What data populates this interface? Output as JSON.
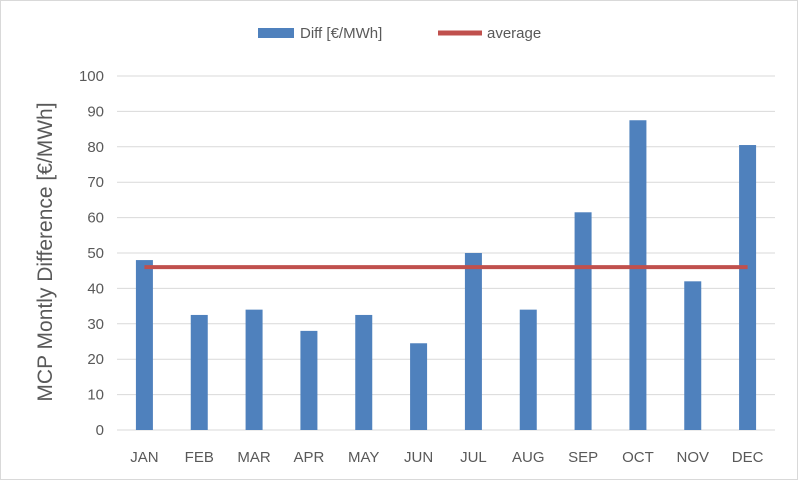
{
  "chart_data": {
    "type": "bar",
    "title": "",
    "xlabel": "",
    "ylabel": "MCP Montly Difference [€/MWh]",
    "categories": [
      "JAN",
      "FEB",
      "MAR",
      "APR",
      "MAY",
      "JUN",
      "JUL",
      "AUG",
      "SEP",
      "OCT",
      "NOV",
      "DEC"
    ],
    "series": [
      {
        "name": "Diff [€/MWh]",
        "type": "bar",
        "color": "#4f81bd",
        "values": [
          48,
          32.5,
          34,
          28,
          32.5,
          24.5,
          50,
          34,
          61.5,
          87.5,
          42,
          80.5
        ]
      },
      {
        "name": "average",
        "type": "line",
        "color": "#c0504d",
        "values": [
          46,
          46,
          46,
          46,
          46,
          46,
          46,
          46,
          46,
          46,
          46,
          46
        ]
      }
    ],
    "ylim": [
      0,
      100
    ],
    "yticks": [
      "0",
      "10",
      "20",
      "30",
      "40",
      "50",
      "60",
      "70",
      "80",
      "90",
      "100"
    ],
    "grid": true,
    "legend_position": "top-center"
  }
}
